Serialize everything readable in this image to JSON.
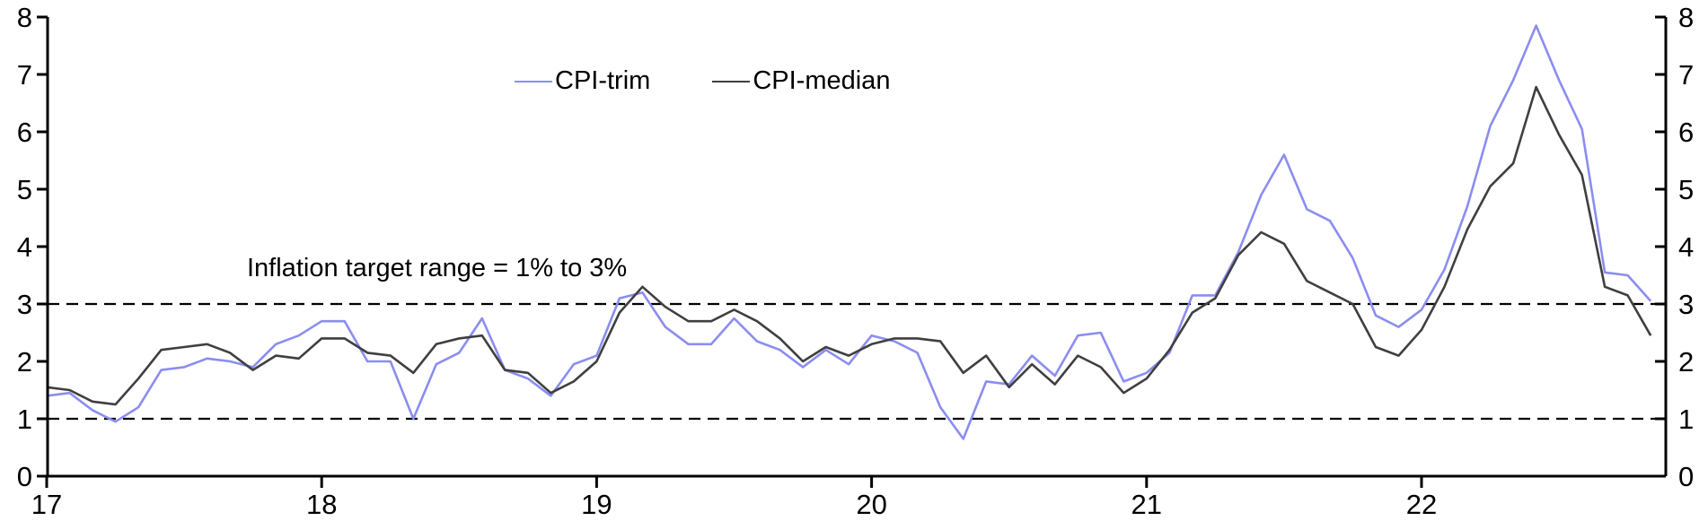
{
  "chart_data": {
    "type": "line",
    "title": "",
    "grid": "off",
    "legend_position": "top-center",
    "x_axis": {
      "tick_labels": [
        "17",
        "18",
        "19",
        "20",
        "21",
        "22"
      ],
      "start_month": "2017-01",
      "end_month": "2022-11",
      "frequency": "monthly"
    },
    "y_axis": {
      "min": 0,
      "max": 8,
      "ticks": [
        0,
        1,
        2,
        3,
        4,
        5,
        6,
        7,
        8
      ],
      "sides": "both"
    },
    "annotation": {
      "text": "Inflation target range = 1% to 3%"
    },
    "target_range": {
      "low": 1,
      "high": 3,
      "line_style": "dashed",
      "color": "#000000"
    },
    "series": [
      {
        "name": "CPI-trim",
        "color": "#8b8df0",
        "values": [
          1.4,
          1.45,
          1.15,
          0.95,
          1.2,
          1.85,
          1.9,
          2.05,
          2.0,
          1.9,
          2.3,
          2.45,
          2.7,
          2.7,
          2.0,
          2.0,
          1.0,
          1.95,
          2.15,
          2.75,
          1.85,
          1.7,
          1.4,
          1.95,
          2.1,
          3.1,
          3.2,
          2.6,
          2.3,
          2.3,
          2.75,
          2.35,
          2.2,
          1.9,
          2.2,
          1.95,
          2.45,
          2.35,
          2.15,
          1.2,
          0.65,
          1.65,
          1.6,
          2.1,
          1.75,
          2.45,
          2.5,
          1.65,
          1.8,
          2.15,
          3.15,
          3.15,
          3.9,
          4.9,
          5.6,
          4.65,
          4.45,
          3.8,
          2.8,
          2.6,
          2.9,
          3.6,
          4.7,
          6.1,
          6.9,
          7.85,
          6.9,
          6.05,
          3.55,
          3.5,
          3.05
        ]
      },
      {
        "name": "CPI-median",
        "color": "#3f3f3f",
        "values": [
          1.55,
          1.5,
          1.3,
          1.25,
          1.7,
          2.2,
          2.25,
          2.3,
          2.15,
          1.85,
          2.1,
          2.05,
          2.4,
          2.4,
          2.15,
          2.1,
          1.8,
          2.3,
          2.4,
          2.45,
          1.85,
          1.8,
          1.45,
          1.65,
          2.0,
          2.85,
          3.3,
          2.95,
          2.7,
          2.7,
          2.9,
          2.7,
          2.4,
          2.0,
          2.25,
          2.1,
          2.3,
          2.4,
          2.4,
          2.35,
          1.8,
          2.1,
          1.55,
          1.95,
          1.6,
          2.1,
          1.9,
          1.45,
          1.7,
          2.2,
          2.85,
          3.1,
          3.85,
          4.25,
          4.05,
          3.4,
          3.2,
          3.0,
          2.25,
          2.1,
          2.55,
          3.3,
          4.3,
          5.05,
          5.45,
          6.78,
          5.95,
          5.25,
          3.3,
          3.15,
          2.45
        ]
      }
    ]
  }
}
